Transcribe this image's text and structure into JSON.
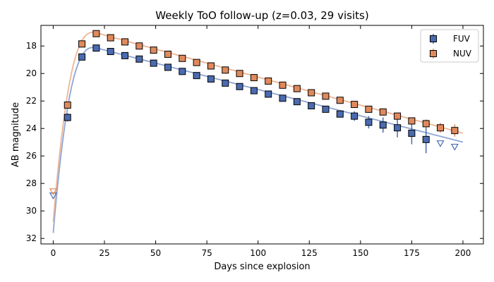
{
  "chart_data": {
    "type": "scatter",
    "title": "Weekly ToO follow-up (z=0.03, 29 visits)",
    "xlabel": "Days since explosion",
    "ylabel": "AB magnitude",
    "xlim": [
      -6,
      210
    ],
    "ylim": [
      32.4,
      16.5
    ],
    "y_inverted": true,
    "xticks": [
      0,
      25,
      50,
      75,
      100,
      125,
      150,
      175,
      200
    ],
    "yticks": [
      18,
      20,
      22,
      24,
      26,
      28,
      30,
      32
    ],
    "grid": false,
    "legend_position": "top-right",
    "series": [
      {
        "name": "FUV",
        "color": "#4a6bb0",
        "line_color": "#8ea6d6",
        "marker": "square",
        "detections": [
          {
            "x": 7,
            "y": 23.2,
            "err": 0.3
          },
          {
            "x": 14,
            "y": 18.8,
            "err": 0.15
          },
          {
            "x": 21,
            "y": 18.15,
            "err": 0.1
          },
          {
            "x": 28,
            "y": 18.4,
            "err": 0.1
          },
          {
            "x": 35,
            "y": 18.7,
            "err": 0.1
          },
          {
            "x": 42,
            "y": 18.95,
            "err": 0.1
          },
          {
            "x": 49,
            "y": 19.25,
            "err": 0.1
          },
          {
            "x": 56,
            "y": 19.55,
            "err": 0.1
          },
          {
            "x": 63,
            "y": 19.85,
            "err": 0.1
          },
          {
            "x": 70,
            "y": 20.15,
            "err": 0.1
          },
          {
            "x": 77,
            "y": 20.4,
            "err": 0.1
          },
          {
            "x": 84,
            "y": 20.7,
            "err": 0.1
          },
          {
            "x": 91,
            "y": 20.95,
            "err": 0.1
          },
          {
            "x": 98,
            "y": 21.25,
            "err": 0.1
          },
          {
            "x": 105,
            "y": 21.5,
            "err": 0.1
          },
          {
            "x": 112,
            "y": 21.8,
            "err": 0.1
          },
          {
            "x": 119,
            "y": 22.05,
            "err": 0.1
          },
          {
            "x": 126,
            "y": 22.35,
            "err": 0.12
          },
          {
            "x": 133,
            "y": 22.6,
            "err": 0.15
          },
          {
            "x": 140,
            "y": 22.95,
            "err": 0.25
          },
          {
            "x": 147,
            "y": 23.1,
            "err": 0.35
          },
          {
            "x": 154,
            "y": 23.55,
            "err": 0.45
          },
          {
            "x": 161,
            "y": 23.75,
            "err": 0.55
          },
          {
            "x": 168,
            "y": 23.95,
            "err": 0.7
          },
          {
            "x": 175,
            "y": 24.35,
            "err": 0.8
          },
          {
            "x": 182,
            "y": 24.8,
            "err": 1.0
          }
        ],
        "upper_limits": [
          {
            "x": 0,
            "y": 28.9
          },
          {
            "x": 189,
            "y": 25.1
          },
          {
            "x": 196,
            "y": 25.35
          }
        ],
        "model": {
          "peak_x": 20,
          "peak_y": 18.1,
          "slope": -0.0383,
          "start_x": 0,
          "start_y": 31.6,
          "end_x": 200
        }
      },
      {
        "name": "NUV",
        "color": "#e08a5c",
        "line_color": "#eeb594",
        "marker": "square",
        "detections": [
          {
            "x": 7,
            "y": 22.3,
            "err": 0.2
          },
          {
            "x": 14,
            "y": 17.85,
            "err": 0.1
          },
          {
            "x": 21,
            "y": 17.1,
            "err": 0.08
          },
          {
            "x": 28,
            "y": 17.4,
            "err": 0.08
          },
          {
            "x": 35,
            "y": 17.7,
            "err": 0.08
          },
          {
            "x": 42,
            "y": 18.0,
            "err": 0.08
          },
          {
            "x": 49,
            "y": 18.3,
            "err": 0.08
          },
          {
            "x": 56,
            "y": 18.6,
            "err": 0.08
          },
          {
            "x": 63,
            "y": 18.9,
            "err": 0.08
          },
          {
            "x": 70,
            "y": 19.2,
            "err": 0.08
          },
          {
            "x": 77,
            "y": 19.45,
            "err": 0.08
          },
          {
            "x": 84,
            "y": 19.75,
            "err": 0.08
          },
          {
            "x": 91,
            "y": 20.0,
            "err": 0.08
          },
          {
            "x": 98,
            "y": 20.3,
            "err": 0.08
          },
          {
            "x": 105,
            "y": 20.55,
            "err": 0.08
          },
          {
            "x": 112,
            "y": 20.85,
            "err": 0.08
          },
          {
            "x": 119,
            "y": 21.1,
            "err": 0.1
          },
          {
            "x": 126,
            "y": 21.4,
            "err": 0.1
          },
          {
            "x": 133,
            "y": 21.65,
            "err": 0.1
          },
          {
            "x": 140,
            "y": 21.95,
            "err": 0.12
          },
          {
            "x": 147,
            "y": 22.25,
            "err": 0.12
          },
          {
            "x": 154,
            "y": 22.6,
            "err": 0.15
          },
          {
            "x": 161,
            "y": 22.8,
            "err": 0.18
          },
          {
            "x": 168,
            "y": 23.1,
            "err": 0.22
          },
          {
            "x": 175,
            "y": 23.45,
            "err": 0.25
          },
          {
            "x": 182,
            "y": 23.65,
            "err": 0.3
          },
          {
            "x": 189,
            "y": 23.95,
            "err": 0.35
          },
          {
            "x": 196,
            "y": 24.15,
            "err": 0.45
          }
        ],
        "upper_limits": [
          {
            "x": 0,
            "y": 28.6
          }
        ],
        "model": {
          "peak_x": 20,
          "peak_y": 17.0,
          "slope": -0.0408,
          "start_x": 0,
          "start_y": 30.8,
          "end_x": 200
        }
      }
    ]
  }
}
